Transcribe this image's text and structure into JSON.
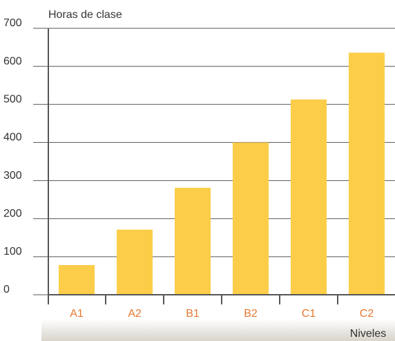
{
  "chart_data": {
    "type": "bar",
    "y_label": "Horas de clase",
    "x_label": "Niveles",
    "categories": [
      "A1",
      "A2",
      "B1",
      "B2",
      "C1",
      "C2"
    ],
    "values": [
      78,
      171,
      281,
      400,
      513,
      636
    ],
    "color": "#fccd48",
    "category_color": "#e8772e",
    "ylim": [
      0,
      700
    ],
    "yticks": [
      0,
      100,
      200,
      300,
      400,
      500,
      600,
      700
    ],
    "grid": true
  }
}
